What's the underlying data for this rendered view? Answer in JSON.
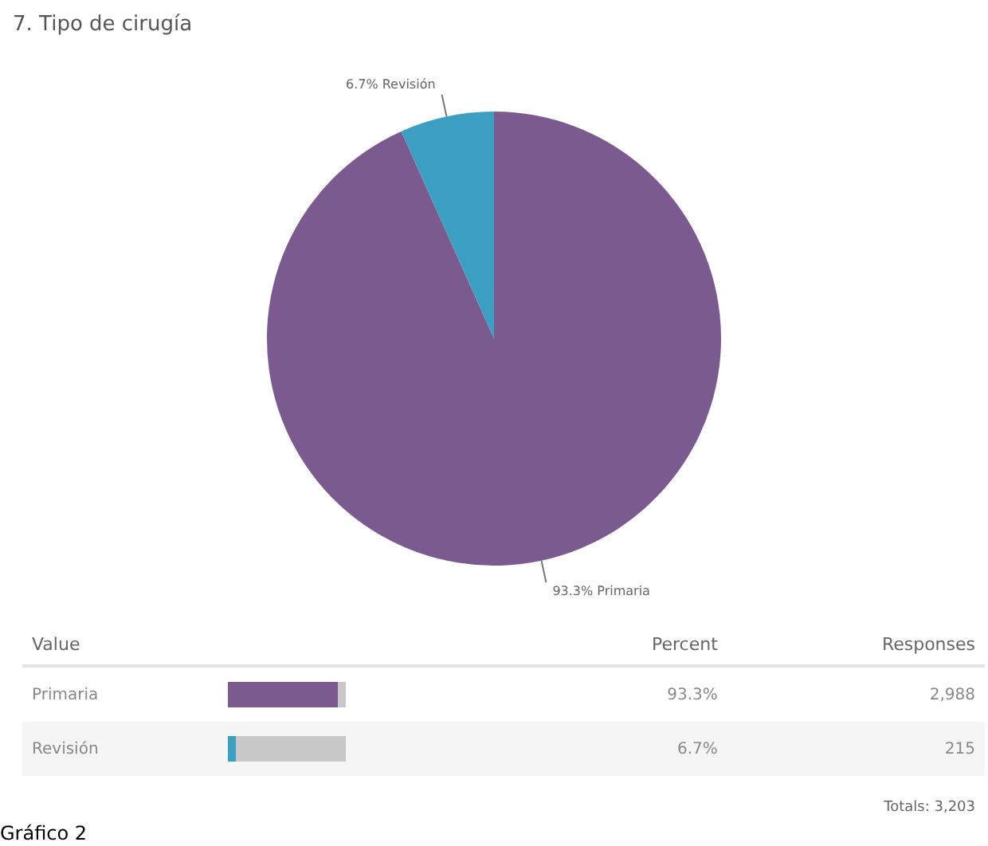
{
  "chart_data": {
    "type": "pie",
    "title": "7. Tipo de cirugía",
    "categories": [
      "93.3% Primaria",
      "6.7% Revisión"
    ],
    "values": [
      93.3,
      6.7
    ],
    "colors": [
      "#7b5a8f",
      "#3a9fc1"
    ],
    "annotations": [
      "Value",
      "Percent",
      "Responses",
      "Primaria",
      "93.3%",
      "2,988",
      "Revisión",
      "6.7%",
      "215",
      "Totals: 3,203",
      "Gráfico 2"
    ]
  }
}
